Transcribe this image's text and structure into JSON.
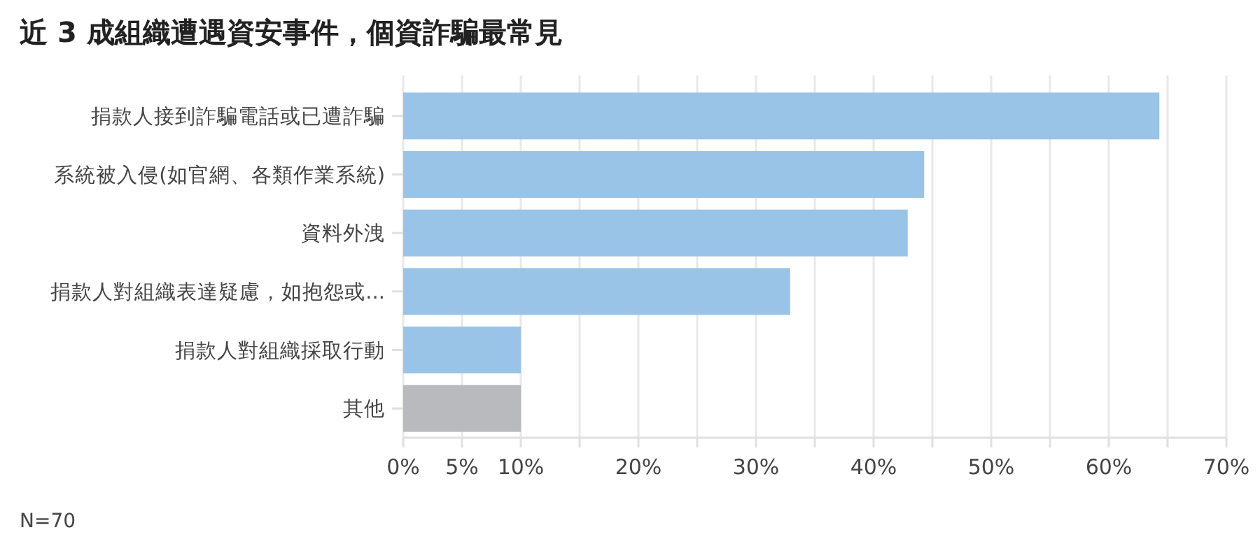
{
  "chart_data": {
    "type": "bar",
    "orientation": "horizontal",
    "title": "近 3 成組織遭遇資安事件，個資詐騙最常見",
    "categories": [
      "捐款人接到詐騙電話或已遭詐騙",
      "系統被入侵(如官網、各類作業系統)",
      "資料外洩",
      "捐款人對組織表達疑慮，如抱怨或...",
      "捐款人對組織採取行動",
      "其他"
    ],
    "values": [
      64.3,
      44.3,
      42.9,
      32.9,
      10,
      10
    ],
    "colors": [
      "#99c4e8",
      "#99c4e8",
      "#99c4e8",
      "#99c4e8",
      "#99c4e8",
      "#b8babd"
    ],
    "xlim": [
      0,
      70
    ],
    "xticks": [
      {
        "value": 0,
        "label": "0%"
      },
      {
        "value": 5,
        "label": "5%"
      },
      {
        "value": 10,
        "label": "10%"
      },
      {
        "value": 15,
        "label": null
      },
      {
        "value": 20,
        "label": "20%"
      },
      {
        "value": 25,
        "label": null
      },
      {
        "value": 30,
        "label": "30%"
      },
      {
        "value": 35,
        "label": null
      },
      {
        "value": 40,
        "label": "40%"
      },
      {
        "value": 45,
        "label": null
      },
      {
        "value": 50,
        "label": "50%"
      },
      {
        "value": 55,
        "label": null
      },
      {
        "value": 60,
        "label": "60%"
      },
      {
        "value": 65,
        "label": null
      },
      {
        "value": 70,
        "label": "70%"
      }
    ],
    "grid": "x",
    "annotations": [
      "N=70"
    ]
  }
}
